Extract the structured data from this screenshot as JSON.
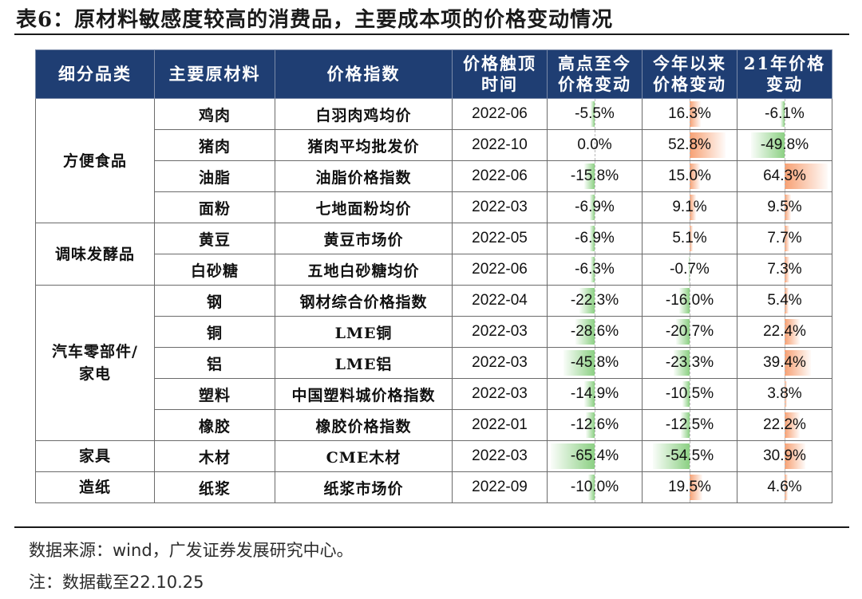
{
  "title": "表6：原材料敏感度较高的消费品，主要成本项的价格变动情况",
  "headers": {
    "category": "细分品类",
    "material": "主要原材料",
    "index": "价格指数",
    "peak_time_l1": "价格触顶",
    "peak_time_l2": "时间",
    "from_peak_l1": "高点至今",
    "from_peak_l2": "价格变动",
    "ytd_l1": "今年以来",
    "ytd_l2": "价格变动",
    "y21_l1": "21年价格",
    "y21_l2": "变动"
  },
  "rows": [
    {
      "category": "方便食品",
      "category_lines": [
        "方便食品"
      ],
      "rowspan": 4,
      "material": "鸡肉",
      "index": "白羽肉鸡均价",
      "peak_time": "2022-06",
      "from_peak": "-5.5%",
      "ytd": "16.3%",
      "y21": "-6.1%"
    },
    {
      "material": "猪肉",
      "index": "猪肉平均批发价",
      "peak_time": "2022-10",
      "from_peak": "0.0%",
      "ytd": "52.8%",
      "y21": "-49.8%"
    },
    {
      "material": "油脂",
      "index": "油脂价格指数",
      "peak_time": "2022-06",
      "from_peak": "-15.8%",
      "ytd": "15.0%",
      "y21": "64.3%"
    },
    {
      "material": "面粉",
      "index": "七地面粉均价",
      "peak_time": "2022-03",
      "from_peak": "-6.9%",
      "ytd": "9.1%",
      "y21": "9.5%"
    },
    {
      "category": "调味发酵品",
      "category_lines": [
        "调味发酵品"
      ],
      "rowspan": 2,
      "material": "黄豆",
      "index": "黄豆市场价",
      "peak_time": "2022-05",
      "from_peak": "-6.9%",
      "ytd": "5.1%",
      "y21": "7.7%"
    },
    {
      "material": "白砂糖",
      "index": "五地白砂糖均价",
      "peak_time": "2022-06",
      "from_peak": "-6.3%",
      "ytd": "-0.7%",
      "y21": "7.3%"
    },
    {
      "category": "汽车零部件/家电",
      "category_lines": [
        "汽车零部件/",
        "家电"
      ],
      "rowspan": 5,
      "material": "钢",
      "index": "钢材综合价格指数",
      "peak_time": "2022-04",
      "from_peak": "-22.3%",
      "ytd": "-16.0%",
      "y21": "5.4%"
    },
    {
      "material": "铜",
      "index": "LME铜",
      "peak_time": "2022-03",
      "from_peak": "-28.6%",
      "ytd": "-20.7%",
      "y21": "22.4%"
    },
    {
      "material": "铝",
      "index": "LME铝",
      "peak_time": "2022-03",
      "from_peak": "-45.8%",
      "ytd": "-23.3%",
      "y21": "39.4%"
    },
    {
      "material": "塑料",
      "index": "中国塑料城价格指数",
      "peak_time": "2022-03",
      "from_peak": "-14.9%",
      "ytd": "-10.5%",
      "y21": "3.8%"
    },
    {
      "material": "橡胶",
      "index": "橡胶价格指数",
      "peak_time": "2022-01",
      "from_peak": "-12.6%",
      "ytd": "-12.5%",
      "y21": "22.2%"
    },
    {
      "category": "家具",
      "category_lines": [
        "家具"
      ],
      "rowspan": 1,
      "material": "木材",
      "index": "CME木材",
      "peak_time": "2022-03",
      "from_peak": "-65.4%",
      "ytd": "-54.5%",
      "y21": "30.9%"
    },
    {
      "category": "造纸",
      "category_lines": [
        "造纸"
      ],
      "rowspan": 1,
      "material": "纸浆",
      "index": "纸浆市场价",
      "peak_time": "2022-09",
      "from_peak": "-10.0%",
      "ytd": "19.5%",
      "y21": "4.6%"
    }
  ],
  "source": "数据来源：wind，广发证券发展研究中心。",
  "note": "注：数据截至22.10.25"
}
